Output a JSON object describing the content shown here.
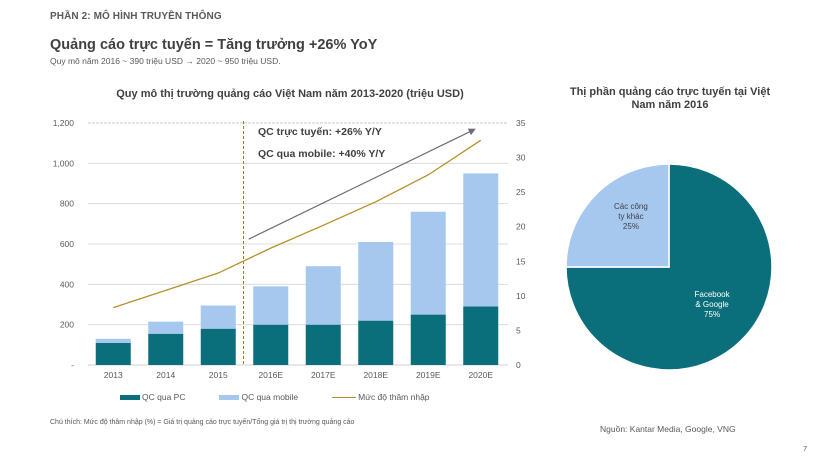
{
  "header": {
    "section_label": "PHẦN 2: MÔ HÌNH TRUYỀN THÔNG",
    "headline": "Quảng cáo trực tuyến = Tăng trưởng +26% YoY",
    "subline": "Quy mô năm 2016 ~ 390 triệu USD → 2020 ~ 950 triệu USD."
  },
  "colors": {
    "pc": "#0b6e7b",
    "mobile": "#a6c8ef",
    "penetration": "#b8902a",
    "trend_arrow": "#6b6b78",
    "divider": "#9c7a2c"
  },
  "chart_data": [
    {
      "type": "bar",
      "stacked": true,
      "title": "Quy mô thị trường quảng cáo Việt Nam năm 2013-2020 (triệu USD)",
      "categories": [
        "2013",
        "2014",
        "2015",
        "2016E",
        "2017E",
        "2018E",
        "2019E",
        "2020E"
      ],
      "series": [
        {
          "name": "QC qua PC",
          "axis": "left",
          "values": [
            110,
            155,
            180,
            200,
            200,
            220,
            250,
            290
          ]
        },
        {
          "name": "QC qua mobile",
          "axis": "left",
          "values": [
            20,
            60,
            115,
            190,
            290,
            390,
            510,
            660
          ]
        },
        {
          "name": "Mức độ thâm nhập",
          "axis": "right",
          "type": "line",
          "values": [
            8.3,
            10.8,
            13.3,
            16.9,
            20.2,
            23.6,
            27.5,
            32.5
          ]
        }
      ],
      "yleft": {
        "ticks": [
          "-",
          "200",
          "400",
          "600",
          "800",
          "1,000",
          "1,200"
        ],
        "range": [
          0,
          1200
        ]
      },
      "yright": {
        "ticks": [
          "0",
          "5",
          "10",
          "15",
          "20",
          "25",
          "30",
          "35"
        ],
        "range": [
          0,
          35
        ]
      },
      "grid": true,
      "forecast_divider_between": [
        "2015",
        "2016E"
      ],
      "annotations": [
        "QC trực tuyến: +26% Y/Y",
        "QC qua mobile: +40% Y/Y"
      ],
      "legend": [
        "QC qua PC",
        "QC qua mobile",
        "Mức độ thâm nhập"
      ],
      "legend_position": "bottom"
    },
    {
      "type": "pie",
      "title": "Thị phần quảng cáo trực tuyến tại Việt Nam năm 2016",
      "slices": [
        {
          "label": "Facebook & Google",
          "label_lines": [
            "Facebook",
            "& Google"
          ],
          "value": 75,
          "pct_label": "75%"
        },
        {
          "label": "Các công ty khác",
          "label_lines": [
            "Các công",
            "ty khác"
          ],
          "value": 25,
          "pct_label": "25%"
        }
      ]
    }
  ],
  "footer": {
    "note": "Chú thích: Mức độ thâm nhập (%) = Giá trị quảng cáo trực tuyến/Tổng giá trị thị trường quảng cáo",
    "source": "Nguồn: Kantar Media, Google, VNG",
    "page_number": "7"
  }
}
